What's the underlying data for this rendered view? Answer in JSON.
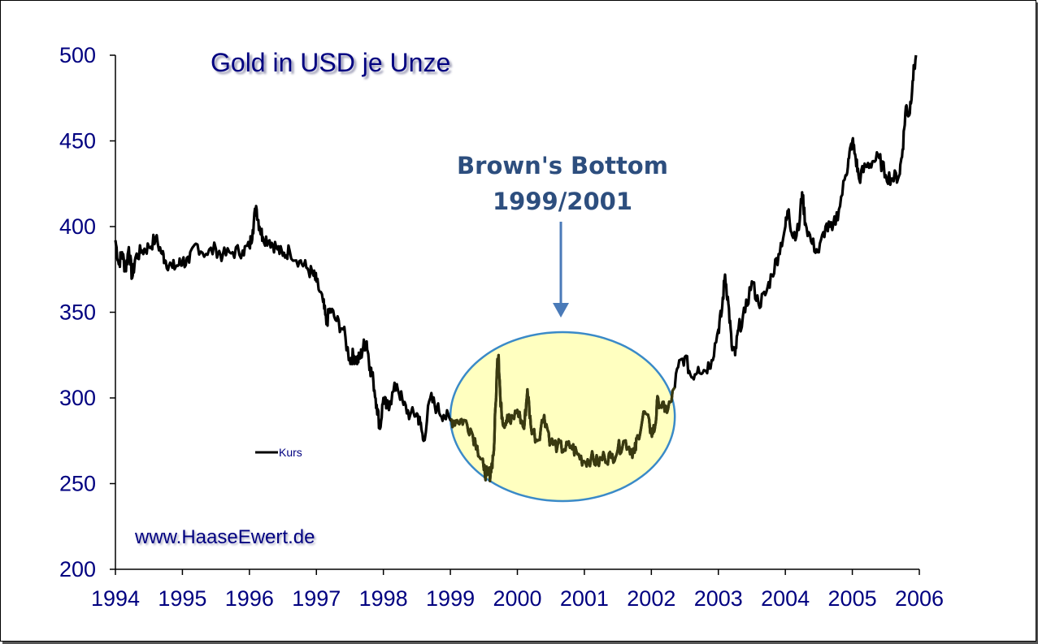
{
  "chart_data": {
    "type": "line",
    "title": "Gold in USD je Unze",
    "watermark": "www.HaaseEwert.de",
    "annotation": {
      "line1": "Brown's Bottom",
      "line2": "1999/2001",
      "highlight_range": [
        1999,
        2002.35
      ]
    },
    "legend": {
      "entries": [
        "Kurs"
      ],
      "placement": "left-middle"
    },
    "xlabel": "",
    "ylabel": "",
    "xlim": [
      1994,
      2006
    ],
    "ylim": [
      200,
      500
    ],
    "x_ticks": [
      "1994",
      "1995",
      "1996",
      "1997",
      "1998",
      "1999",
      "2000",
      "2001",
      "2002",
      "2003",
      "2004",
      "2005",
      "2006"
    ],
    "y_ticks": [
      "500",
      "450",
      "400",
      "350",
      "300",
      "250",
      "200"
    ],
    "grid": false,
    "series": [
      {
        "name": "Kurs",
        "color": "#000000",
        "x": [
          1994.0,
          1994.05,
          1994.1,
          1994.15,
          1994.2,
          1994.25,
          1994.3,
          1994.4,
          1994.5,
          1994.6,
          1994.7,
          1994.75,
          1994.85,
          1994.95,
          1995.0,
          1995.1,
          1995.2,
          1995.35,
          1995.5,
          1995.6,
          1995.75,
          1995.9,
          1996.0,
          1996.05,
          1996.1,
          1996.15,
          1996.2,
          1996.3,
          1996.4,
          1996.5,
          1996.6,
          1996.75,
          1996.85,
          1996.95,
          1997.0,
          1997.1,
          1997.15,
          1997.2,
          1997.3,
          1997.4,
          1997.5,
          1997.55,
          1997.6,
          1997.65,
          1997.7,
          1997.75,
          1997.8,
          1997.85,
          1997.9,
          1997.95,
          1998.0,
          1998.05,
          1998.1,
          1998.2,
          1998.3,
          1998.4,
          1998.5,
          1998.55,
          1998.6,
          1998.7,
          1998.8,
          1998.9,
          1999.0,
          1999.1,
          1999.2,
          1999.3,
          1999.4,
          1999.5,
          1999.55,
          1999.6,
          1999.65,
          1999.7,
          1999.72,
          1999.75,
          1999.8,
          1999.85,
          1999.9,
          2000.0,
          2000.1,
          2000.15,
          2000.2,
          2000.3,
          2000.4,
          2000.5,
          2000.6,
          2000.7,
          2000.8,
          2000.9,
          2001.0,
          2001.1,
          2001.2,
          2001.3,
          2001.4,
          2001.5,
          2001.6,
          2001.7,
          2001.75,
          2001.8,
          2001.9,
          2002.0,
          2002.05,
          2002.1,
          2002.2,
          2002.3,
          2002.4,
          2002.5,
          2002.6,
          2002.7,
          2002.8,
          2002.9,
          2003.0,
          2003.05,
          2003.1,
          2003.15,
          2003.2,
          2003.25,
          2003.3,
          2003.4,
          2003.5,
          2003.6,
          2003.7,
          2003.8,
          2003.9,
          2004.0,
          2004.05,
          2004.1,
          2004.2,
          2004.25,
          2004.3,
          2004.4,
          2004.5,
          2004.6,
          2004.7,
          2004.8,
          2004.9,
          2004.95,
          2005.0,
          2005.05,
          2005.1,
          2005.2,
          2005.3,
          2005.4,
          2005.5,
          2005.6,
          2005.7,
          2005.75,
          2005.8,
          2005.85,
          2005.9,
          2005.95
        ],
        "y": [
          392,
          378,
          385,
          374,
          388,
          370,
          382,
          386,
          388,
          393,
          384,
          380,
          376,
          378,
          380,
          379,
          390,
          384,
          387,
          383,
          385,
          386,
          388,
          398,
          412,
          400,
          394,
          392,
          388,
          383,
          386,
          380,
          376,
          372,
          368,
          356,
          343,
          352,
          345,
          340,
          322,
          325,
          322,
          323,
          330,
          333,
          318,
          310,
          296,
          282,
          300,
          294,
          298,
          308,
          296,
          290,
          291,
          285,
          275,
          300,
          294,
          290,
          287,
          287,
          287,
          282,
          272,
          258,
          255,
          256,
          270,
          320,
          325,
          295,
          285,
          290,
          285,
          293,
          282,
          305,
          284,
          275,
          290,
          274,
          272,
          270,
          272,
          267,
          263,
          265,
          262,
          266,
          265,
          270,
          275,
          270,
          268,
          278,
          292,
          280,
          282,
          300,
          292,
          298,
          318,
          324,
          312,
          318,
          316,
          322,
          340,
          350,
          372,
          355,
          330,
          325,
          340,
          350,
          368,
          355,
          360,
          372,
          384,
          400,
          410,
          395,
          398,
          420,
          402,
          390,
          385,
          400,
          398,
          410,
          430,
          440,
          450,
          440,
          428,
          435,
          438,
          440,
          430,
          428,
          430,
          445,
          470,
          465,
          485,
          500
        ]
      }
    ]
  }
}
